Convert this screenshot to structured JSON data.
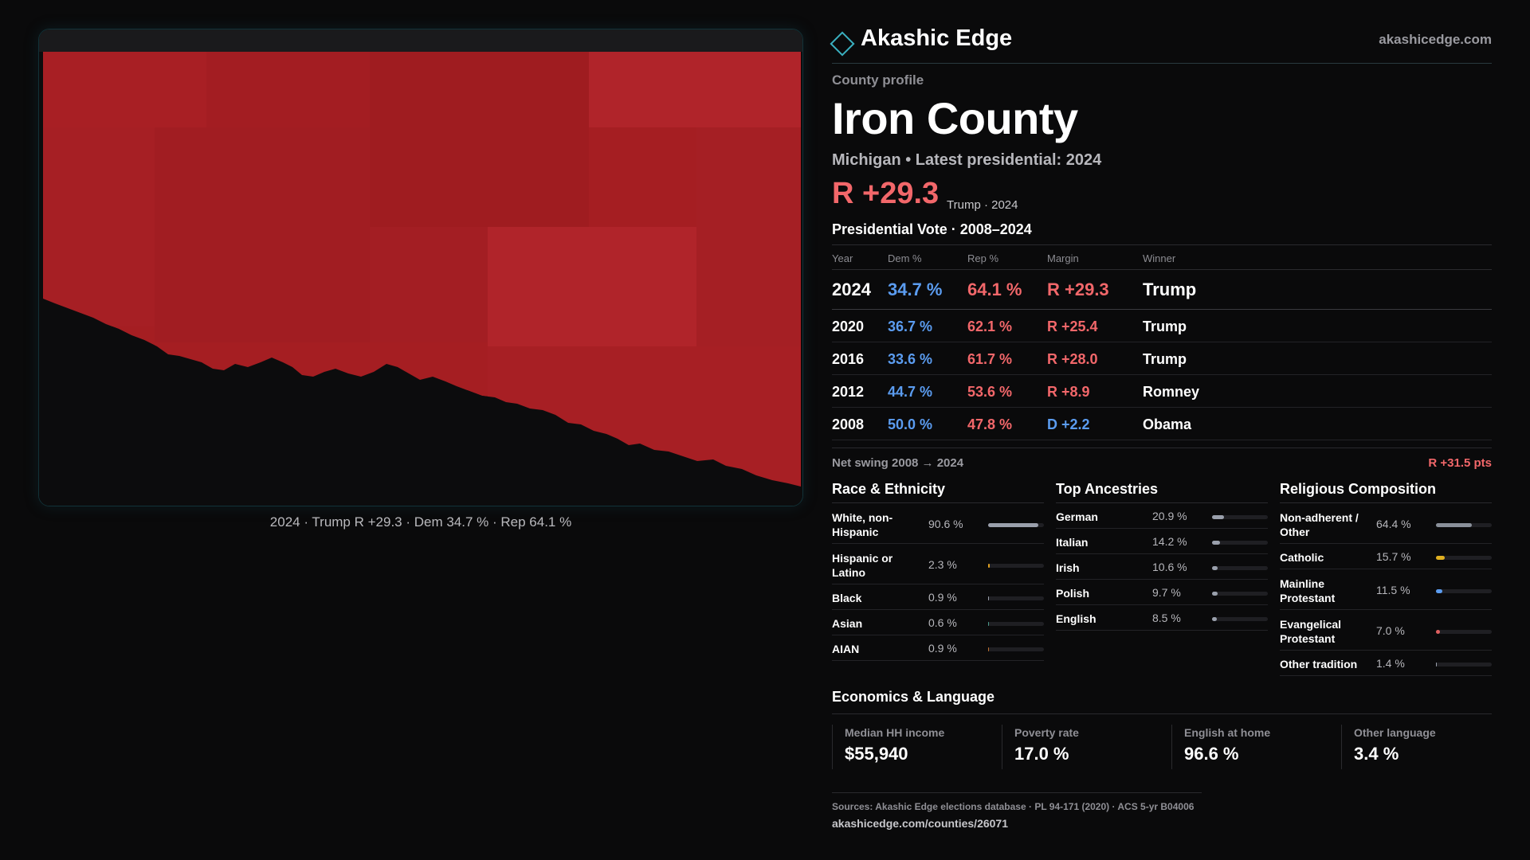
{
  "brand": {
    "name": "Akashic Edge",
    "url": "akashicedge.com",
    "accent_color": "#3ab0c0"
  },
  "map": {
    "fill_color": "#a51e22",
    "caption": "2024 · Trump R +29.3 · Dem 34.7 % · Rep 64.1 %"
  },
  "profile": {
    "eyebrow": "County profile",
    "county": "Iron County",
    "subtitle": "Michigan • Latest presidential: 2024",
    "headline_margin": "R +29.3",
    "headline_note": "Trump · 2024"
  },
  "vote": {
    "title": "Presidential Vote · 2008–2024",
    "columns": [
      "Year",
      "Dem %",
      "Rep %",
      "Margin",
      "Winner"
    ],
    "rows": [
      {
        "year": "2024",
        "dem": "34.7 %",
        "rep": "64.1 %",
        "margin": "R +29.3",
        "party": "R",
        "winner": "Trump"
      },
      {
        "year": "2020",
        "dem": "36.7 %",
        "rep": "62.1 %",
        "margin": "R +25.4",
        "party": "R",
        "winner": "Trump"
      },
      {
        "year": "2016",
        "dem": "33.6 %",
        "rep": "61.7 %",
        "margin": "R +28.0",
        "party": "R",
        "winner": "Trump"
      },
      {
        "year": "2012",
        "dem": "44.7 %",
        "rep": "53.6 %",
        "margin": "R +8.9",
        "party": "R",
        "winner": "Romney"
      },
      {
        "year": "2008",
        "dem": "50.0 %",
        "rep": "47.8 %",
        "margin": "D +2.2",
        "party": "D",
        "winner": "Obama"
      }
    ],
    "swing_label": "Net swing 2008 → 2024",
    "swing_value": "R +31.5 pts"
  },
  "race": {
    "title": "Race & Ethnicity",
    "items": [
      {
        "label": "White, non-Hispanic",
        "value": "90.6 %",
        "pct": 90.6,
        "color": "#9aa0ac"
      },
      {
        "label": "Hispanic or Latino",
        "value": "2.3 %",
        "pct": 2.3,
        "color": "#e0a020"
      },
      {
        "label": "Black",
        "value": "0.9 %",
        "pct": 0.9,
        "color": "#9aa0ac"
      },
      {
        "label": "Asian",
        "value": "0.6 %",
        "pct": 0.6,
        "color": "#4a9a8a"
      },
      {
        "label": "AIAN",
        "value": "0.9 %",
        "pct": 0.9,
        "color": "#c07030"
      }
    ]
  },
  "ancestry": {
    "title": "Top Ancestries",
    "items": [
      {
        "label": "German",
        "value": "20.9 %",
        "pct": 20.9,
        "color": "#9aa0ac"
      },
      {
        "label": "Italian",
        "value": "14.2 %",
        "pct": 14.2,
        "color": "#9aa0ac"
      },
      {
        "label": "Irish",
        "value": "10.6 %",
        "pct": 10.6,
        "color": "#9aa0ac"
      },
      {
        "label": "Polish",
        "value": "9.7 %",
        "pct": 9.7,
        "color": "#9aa0ac"
      },
      {
        "label": "English",
        "value": "8.5 %",
        "pct": 8.5,
        "color": "#9aa0ac"
      }
    ]
  },
  "religion": {
    "title": "Religious Composition",
    "items": [
      {
        "label": "Non-adherent / Other",
        "value": "64.4 %",
        "pct": 64.4,
        "color": "#8a909a"
      },
      {
        "label": "Catholic",
        "value": "15.7 %",
        "pct": 15.7,
        "color": "#e0b020"
      },
      {
        "label": "Mainline Protestant",
        "value": "11.5 %",
        "pct": 11.5,
        "color": "#5b9cf0"
      },
      {
        "label": "Evangelical Protestant",
        "value": "7.0 %",
        "pct": 7.0,
        "color": "#e06060"
      },
      {
        "label": "Other tradition",
        "value": "1.4 %",
        "pct": 1.4,
        "color": "#9aa0ac"
      }
    ]
  },
  "economics": {
    "title": "Economics & Language",
    "items": [
      {
        "label": "Median HH income",
        "value": "$55,940"
      },
      {
        "label": "Poverty rate",
        "value": "17.0 %"
      },
      {
        "label": "English at home",
        "value": "96.6 %"
      },
      {
        "label": "Other language",
        "value": "3.4 %"
      }
    ]
  },
  "sources": {
    "text": "Sources: Akashic Edge elections database · PL 94-171 (2020) · ACS 5-yr B04006",
    "url": "akashicedge.com/counties/26071"
  },
  "colors": {
    "dem": "#5b9cf0",
    "rep": "#f2676a"
  }
}
